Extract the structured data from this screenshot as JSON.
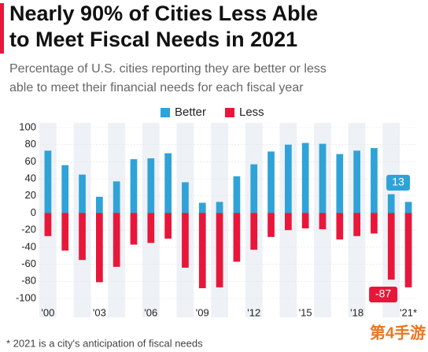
{
  "chart_data": {
    "type": "bar",
    "title_lines": [
      "Nearly 90% of Cities Less Able",
      "to Meet Fiscal Needs in 2021"
    ],
    "subtitle_lines": [
      "Percentage of U.S. cities reporting they are better or less",
      "able to meet their financial needs for each fiscal year"
    ],
    "categories": [
      "'00",
      null,
      null,
      "'03",
      null,
      null,
      "'06",
      null,
      null,
      "'09",
      null,
      null,
      "'12",
      null,
      null,
      "'15",
      null,
      null,
      "'18",
      null,
      null,
      "'21*"
    ],
    "series": [
      {
        "name": "Better",
        "color": "#2fa3d8",
        "values": [
          73,
          56,
          45,
          19,
          37,
          63,
          64,
          70,
          36,
          12,
          13,
          43,
          57,
          72,
          80,
          82,
          81,
          69,
          73,
          76,
          22,
          13
        ]
      },
      {
        "name": "Less",
        "color": "#e8173a",
        "values": [
          -27,
          -44,
          -55,
          -81,
          -63,
          -37,
          -35,
          -30,
          -64,
          -88,
          -87,
          -57,
          -43,
          -28,
          -20,
          -18,
          -19,
          -31,
          -27,
          -24,
          -78,
          -87
        ]
      }
    ],
    "ylim": [
      -100,
      100
    ],
    "yticks": [
      -100,
      -80,
      -60,
      -40,
      -20,
      0,
      20,
      40,
      60,
      80,
      100
    ],
    "footnote": "* 2021 is a city's anticipation of fiscal needs",
    "watermark": "第4手游"
  }
}
